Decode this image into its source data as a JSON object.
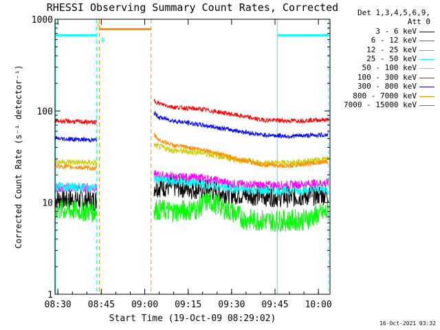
{
  "chart_data": {
    "type": "line",
    "title": "RHESSI Observing Summary Count Rates, Corrected",
    "xlabel": "Start Time (19-Oct-09 08:29:02)",
    "ylabel": "Corrected Count Rate (s⁻¹ detector⁻¹)",
    "ylog": true,
    "ylim": [
      1,
      1000
    ],
    "xlim_minutes": [
      29.0,
      124.0
    ],
    "x_tick_labels": [
      "08:30",
      "08:45",
      "09:00",
      "09:15",
      "09:30",
      "09:45",
      "10:00"
    ],
    "x_tick_minutes": [
      30,
      45,
      60,
      75,
      90,
      105,
      120
    ],
    "y_tick_labels": [
      "1",
      "10",
      "100",
      "1000"
    ],
    "y_tick_values": [
      1,
      10,
      100,
      1000
    ],
    "legend_header": [
      "Det 1,3,4,5,6,9,",
      "Att 0"
    ],
    "legend_placement": "outside-right",
    "series": [
      {
        "name": "3 - 6 keV",
        "color": "#000000",
        "noise": 0.12,
        "segments": [
          {
            "x": [
              29,
              43.5
            ],
            "y": [
              11,
              10.5
            ]
          },
          {
            "x": [
              63.2,
              70,
              80,
              90,
              100,
              110,
              123.5
            ],
            "y": [
              15,
              15,
              14,
              12.5,
              12,
              11.5,
              12.5
            ]
          }
        ]
      },
      {
        "name": "6 - 12 keV",
        "color": "#ff00ff",
        "noise": 0.05,
        "segments": [
          {
            "x": [
              29,
              43.5
            ],
            "y": [
              14.5,
              14.5
            ]
          },
          {
            "x": [
              63.2,
              70,
              80,
              90,
              100,
              110,
              123.5
            ],
            "y": [
              20,
              19,
              18.5,
              16,
              15.5,
              15.5,
              16.5
            ]
          }
        ]
      },
      {
        "name": "12 - 25 keV",
        "color": "#00ff00",
        "noise": 0.12,
        "segments": [
          {
            "x": [
              29,
              43.5
            ],
            "y": [
              8.5,
              8
            ]
          },
          {
            "x": [
              63.2,
              70,
              78,
              82,
              88,
              95,
              105,
              115,
              123.5
            ],
            "y": [
              8.5,
              8,
              8.5,
              10.5,
              8.5,
              6.5,
              6.3,
              6.5,
              8
            ]
          }
        ]
      },
      {
        "name": "25 - 50 keV",
        "color": "#00ffff",
        "noise": 0.05,
        "segments": [
          {
            "x": [
              29,
              43.5
            ],
            "y": [
              15,
              14.5
            ]
          },
          {
            "x": [
              63.2,
              70,
              80,
              90,
              100,
              110,
              123.5
            ],
            "y": [
              18,
              17,
              16,
              14,
              13.5,
              13.5,
              14
            ]
          }
        ]
      },
      {
        "name": "50 - 100 keV",
        "color": "#cccc00",
        "noise": 0.035,
        "segments": [
          {
            "x": [
              29,
              43.5
            ],
            "y": [
              28,
              27
            ]
          },
          {
            "x": [
              63.2,
              70,
              80,
              90,
              100,
              110,
              123.5
            ],
            "y": [
              42,
              37,
              35,
              30,
              27,
              27,
              30
            ]
          }
        ]
      },
      {
        "name": "100 - 300 keV",
        "color": "#ff0000",
        "noise": 0.025,
        "segments": [
          {
            "x": [
              29,
              43.5
            ],
            "y": [
              78,
              75
            ]
          },
          {
            "x": [
              63.2,
              65,
              70,
              80,
              90,
              100,
              110,
              123.5
            ],
            "y": [
              130,
              120,
              110,
              104,
              92,
              80,
              78,
              80
            ]
          }
        ]
      },
      {
        "name": "300 - 800 keV",
        "color": "#0000ff",
        "noise": 0.025,
        "segments": [
          {
            "x": [
              29,
              43.5
            ],
            "y": [
              50,
              48
            ]
          },
          {
            "x": [
              63.2,
              65,
              70,
              80,
              90,
              100,
              110,
              123.5
            ],
            "y": [
              95,
              85,
              78,
              70,
              62,
              55,
              53,
              55
            ]
          }
        ]
      },
      {
        "name": "800 - 7000 keV",
        "color": "#ff8c00",
        "noise": 0.025,
        "segments": [
          {
            "x": [
              29,
              43.5
            ],
            "y": [
              25,
              23.5
            ]
          },
          {
            "x": [
              63.2,
              65,
              70,
              80,
              90,
              100,
              110,
              123.5
            ],
            "y": [
              55,
              48,
              42,
              38,
              31,
              26,
              25,
              28
            ]
          }
        ]
      },
      {
        "name": "7000 - 15000 keV",
        "color": "#808000",
        "noise": 0.03,
        "segments": []
      }
    ],
    "flags": [
      {
        "label": "S",
        "color": "#ff8c00",
        "x": [
          44.3,
          62.2
        ],
        "y": 780,
        "label_x": 43.5
      },
      {
        "label": "N",
        "color": "#00ffff",
        "x": [
          29,
          43.4
        ],
        "y": 670,
        "label_x": 45
      },
      {
        "label": "",
        "color": "#00ffff",
        "x": [
          105.8,
          123.5
        ],
        "y": 670,
        "label_x": 0
      }
    ],
    "markers": [
      {
        "x": 29.2,
        "color": "#00ffff",
        "dash": false
      },
      {
        "x": 43.4,
        "color": "#00ffff",
        "dash": true
      },
      {
        "x": 44.3,
        "color": "#ff8c00",
        "dash": true
      },
      {
        "x": 62.2,
        "color": "#ff8c00",
        "dash": true
      },
      {
        "x": 105.8,
        "color": "#00ffff",
        "dash": false
      },
      {
        "x": 123.5,
        "color": "#00ffff",
        "dash": true
      }
    ]
  },
  "footer_timestamp": "16-Oct-2021 03:32"
}
